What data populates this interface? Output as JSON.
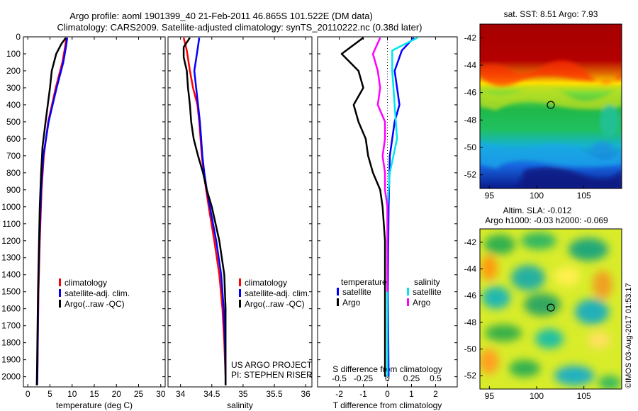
{
  "header": {
    "line1": "Argo profile: aoml 1901399_40 21-Feb-2011 46.865S 101.522E (DM data)",
    "line2": "Climatology: CARS2009. Satellite-adjusted climatology: synTS_20110222.nc (0.38d later)"
  },
  "credits": {
    "project": "US ARGO PROJECT",
    "pi": "PI: STEPHEN RISER",
    "imos": "©IMOS 03-Aug-2017 01:53:17"
  },
  "colors": {
    "climatology": "#ff0000",
    "satellite": "#0000ff",
    "argo": "#000000",
    "cyan": "#00e5ee",
    "magenta": "#ff00ff"
  },
  "depth_axis": {
    "ylim": [
      2060,
      0
    ],
    "ticks": [
      0,
      100,
      200,
      300,
      400,
      500,
      600,
      700,
      800,
      900,
      1000,
      1100,
      1200,
      1300,
      1400,
      1500,
      1600,
      1700,
      1800,
      1900,
      2000
    ],
    "tick_labels": [
      "0",
      "100",
      "200",
      "300",
      "400",
      "500",
      "600",
      "700",
      "800",
      "900",
      "1000",
      "1100",
      "1200",
      "1300",
      "1400",
      "1500",
      "1600",
      "1700",
      "1800",
      "1900",
      "2000"
    ]
  },
  "chart_data": [
    {
      "id": "temperature",
      "type": "line",
      "xlabel": "temperature (deg C)",
      "xlim": [
        -1,
        31
      ],
      "xticks": [
        0,
        5,
        10,
        15,
        20,
        25,
        30
      ],
      "xtick_labels": [
        "0",
        "5",
        "10",
        "15",
        "20",
        "25",
        "30"
      ],
      "legend": [
        "climatology",
        "satellite-adj. clim.",
        "Argo(..raw -QC)"
      ],
      "series": [
        {
          "name": "climatology",
          "color": "#ff0000",
          "depth": [
            5,
            60,
            150,
            300,
            500,
            700,
            900,
            1200,
            1500,
            2000,
            2050
          ],
          "values": [
            8.7,
            8.4,
            7.8,
            6.3,
            4.6,
            3.6,
            3.1,
            2.7,
            2.4,
            2.15,
            2.1
          ]
        },
        {
          "name": "satellite-adj. clim.",
          "color": "#0000ff",
          "depth": [
            5,
            60,
            150,
            300,
            500,
            700,
            900,
            1200,
            1500,
            2000,
            2050
          ],
          "values": [
            8.9,
            8.6,
            8.0,
            6.5,
            4.7,
            3.5,
            3.0,
            2.6,
            2.35,
            2.15,
            2.1
          ]
        },
        {
          "name": "Argo(..raw -QC)",
          "color": "#000000",
          "depth": [
            5,
            40,
            100,
            200,
            300,
            400,
            500,
            650,
            700,
            800,
            1000,
            1500,
            2000,
            2050
          ],
          "values": [
            8.6,
            7.6,
            6.4,
            5.4,
            5.0,
            4.5,
            4.0,
            3.3,
            3.2,
            3.0,
            2.7,
            2.3,
            2.05,
            2.0
          ]
        }
      ]
    },
    {
      "id": "salinity",
      "type": "line",
      "xlabel": "salinity",
      "xlim": [
        33.8,
        36.1
      ],
      "xticks": [
        34,
        34.5,
        35,
        35.5,
        36
      ],
      "xtick_labels": [
        "34",
        "34.5",
        "35",
        "35.5",
        "36"
      ],
      "legend": [
        "climatology",
        "satellite-adj. clim.",
        "Argo(..raw -QC)"
      ],
      "series": [
        {
          "name": "climatology",
          "color": "#ff0000",
          "depth": [
            5,
            80,
            200,
            300,
            400,
            500,
            600,
            700,
            800,
            900,
            1000,
            1200,
            1400,
            1600,
            1800,
            2000,
            2050
          ],
          "values": [
            34.05,
            34.1,
            34.15,
            34.2,
            34.27,
            34.3,
            34.32,
            34.34,
            34.37,
            34.41,
            34.45,
            34.54,
            34.62,
            34.67,
            34.7,
            34.72,
            34.72
          ]
        },
        {
          "name": "satellite-adj. clim.",
          "color": "#0000ff",
          "depth": [
            5,
            80,
            200,
            300,
            400,
            500,
            600,
            700,
            800,
            900,
            1000,
            1200,
            1400,
            1600,
            1800,
            2000,
            2050
          ],
          "values": [
            34.3,
            34.27,
            34.22,
            34.25,
            34.28,
            34.31,
            34.33,
            34.35,
            34.38,
            34.42,
            34.47,
            34.57,
            34.65,
            34.69,
            34.71,
            34.72,
            34.72
          ]
        },
        {
          "name": "Argo(..raw -QC)",
          "color": "#000000",
          "depth": [
            5,
            60,
            120,
            200,
            300,
            400,
            500,
            600,
            700,
            800,
            900,
            1000,
            1200,
            1400,
            1600,
            1800,
            2000,
            2050
          ],
          "values": [
            34.15,
            34.05,
            34.05,
            34.1,
            34.12,
            34.15,
            34.17,
            34.21,
            34.28,
            34.36,
            34.42,
            34.5,
            34.62,
            34.7,
            34.72,
            34.72,
            34.72,
            34.72
          ]
        }
      ]
    },
    {
      "id": "difference",
      "type": "line",
      "xlabel": "T difference from climatology",
      "xlabel_top": "S difference from climatology",
      "xlim": [
        -2.9,
        2.9
      ],
      "xticks": [
        -2,
        -1,
        0,
        1,
        2
      ],
      "xtick_labels": [
        "-2",
        "-1",
        "0",
        "1",
        "2"
      ],
      "s_xticks": [
        -0.5,
        -0.25,
        0,
        0.25,
        0.5
      ],
      "s_xtick_labels": [
        "-0.5",
        "-0.25",
        "0",
        "0.25",
        "0.5"
      ],
      "legend_title_left": "temperature",
      "legend_title_right": "salinity",
      "legend": [
        "satellite",
        "Argo",
        "satellite",
        "Argo"
      ],
      "series": [
        {
          "name": "T satellite",
          "color": "#0000ff",
          "depth": [
            5,
            80,
            200,
            300,
            400,
            500,
            700,
            1000,
            1500,
            2000
          ],
          "values": [
            1.1,
            0.6,
            0.3,
            0.4,
            0.5,
            0.3,
            0.1,
            0.05,
            0.02,
            0.05
          ]
        },
        {
          "name": "T Argo",
          "color": "#000000",
          "depth": [
            5,
            100,
            200,
            300,
            400,
            500,
            600,
            700,
            800,
            900,
            1000,
            1200,
            1500,
            2000
          ],
          "values": [
            -1.0,
            -1.9,
            -1.2,
            -1.0,
            -1.4,
            -1.2,
            -0.9,
            -0.8,
            -0.6,
            -0.3,
            -0.2,
            -0.1,
            -0.1,
            -0.1
          ]
        },
        {
          "name": "S satellite",
          "color": "#00e5ee",
          "depth": [
            5,
            80,
            200,
            400,
            600,
            800,
            1000,
            1300,
            1600,
            2000
          ],
          "values": [
            1.25,
            0.2,
            0.2,
            0.3,
            0.4,
            0.1,
            0.0,
            0.0,
            0.0,
            0.0
          ]
        },
        {
          "name": "S Argo",
          "color": "#ff00ff",
          "depth": [
            5,
            100,
            200,
            300,
            400,
            500,
            600,
            700,
            800,
            900,
            1000,
            1300,
            1500
          ],
          "values": [
            -0.3,
            -0.6,
            -0.4,
            -0.3,
            -0.4,
            -0.1,
            -0.1,
            -0.2,
            -0.1,
            -0.1,
            0.0,
            0.0,
            0.0
          ]
        }
      ]
    },
    {
      "id": "sst_map",
      "type": "heatmap",
      "title": "sat. SST: 8.51  Argo: 7.93",
      "xlim": [
        94,
        109
      ],
      "ylim": [
        -53,
        -41
      ],
      "xticks": [
        95,
        100,
        105
      ],
      "xtick_labels": [
        "95",
        "100",
        "105"
      ],
      "yticks": [
        -42,
        -44,
        -46,
        -48,
        -50,
        -52
      ],
      "ytick_labels": [
        "-42",
        "-44",
        "-46",
        "-48",
        "-50",
        "-52"
      ],
      "marker": [
        101.5,
        -46.9
      ]
    },
    {
      "id": "sla_map",
      "type": "heatmap",
      "title": "Altim. SLA: -0.012",
      "subtitle": "Argo h1000: -0.03 h2000: -0.069",
      "xlim": [
        94,
        109
      ],
      "ylim": [
        -53,
        -41
      ],
      "xticks": [
        95,
        100,
        105
      ],
      "xtick_labels": [
        "95",
        "100",
        "105"
      ],
      "yticks": [
        -42,
        -44,
        -46,
        -48,
        -50,
        -52
      ],
      "ytick_labels": [
        "-42",
        "-44",
        "-46",
        "-48",
        "-50",
        "-52"
      ],
      "marker": [
        101.5,
        -46.9
      ]
    }
  ]
}
